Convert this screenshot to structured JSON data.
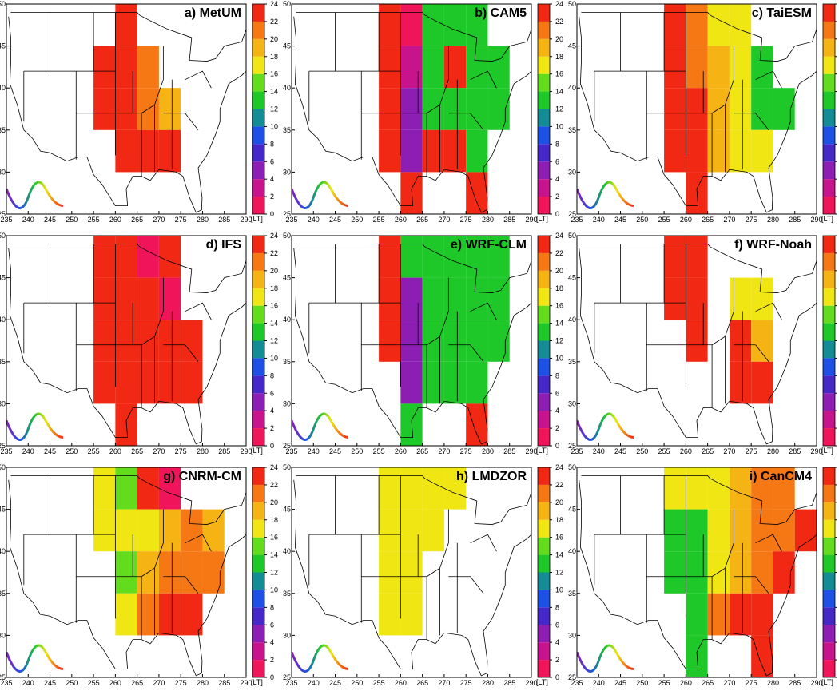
{
  "xlim": [
    235,
    290
  ],
  "ylim": [
    25,
    50
  ],
  "xticks": [
    235,
    240,
    245,
    250,
    255,
    260,
    265,
    270,
    275,
    280,
    285,
    290
  ],
  "yticks": [
    25,
    30,
    35,
    40,
    45,
    50
  ],
  "colorbar": {
    "unit": "[LT]",
    "ticks": [
      0,
      2,
      4,
      6,
      8,
      10,
      12,
      14,
      16,
      18,
      20,
      22,
      24
    ],
    "colors": [
      "#f0145a",
      "#c8148c",
      "#8c1eb4",
      "#4628c8",
      "#1e50e6",
      "#148c96",
      "#1ec828",
      "#64dc1e",
      "#f0e614",
      "#f5b414",
      "#f57814",
      "#f02814"
    ]
  },
  "lon_edges": [
    250,
    255,
    260,
    265,
    270,
    275,
    280,
    285,
    290
  ],
  "lat_edges": [
    50,
    45,
    40,
    35,
    30,
    25
  ],
  "panels": [
    {
      "title": "a) MetUM",
      "values": [
        [
          null,
          null,
          22,
          null,
          null,
          null,
          null,
          null
        ],
        [
          null,
          22,
          22,
          20,
          null,
          null,
          null,
          null
        ],
        [
          null,
          22,
          22,
          20,
          18,
          null,
          null,
          null
        ],
        [
          null,
          null,
          22,
          22,
          22,
          null,
          null,
          null
        ],
        [
          null,
          null,
          null,
          null,
          null,
          null,
          null,
          null
        ]
      ]
    },
    {
      "title": "b) CAM5",
      "values": [
        [
          null,
          23,
          1,
          12,
          12,
          12,
          null,
          null
        ],
        [
          null,
          23,
          2,
          12,
          22,
          12,
          12,
          null
        ],
        [
          null,
          23,
          5,
          12,
          12,
          12,
          12,
          null
        ],
        [
          null,
          23,
          5,
          22,
          22,
          12,
          null,
          null
        ],
        [
          null,
          null,
          23,
          null,
          null,
          22,
          null,
          null
        ]
      ]
    },
    {
      "title": "c) TaiESM",
      "values": [
        [
          null,
          22,
          20,
          16,
          16,
          null,
          null,
          null
        ],
        [
          null,
          22,
          21,
          18,
          16,
          12,
          null,
          null
        ],
        [
          null,
          22,
          22,
          18,
          16,
          12,
          12,
          null
        ],
        [
          null,
          22,
          22,
          18,
          16,
          16,
          null,
          null
        ],
        [
          null,
          null,
          22,
          null,
          null,
          null,
          null,
          null
        ]
      ]
    },
    {
      "title": "d) IFS",
      "values": [
        [
          null,
          23,
          23,
          1,
          23,
          null,
          null,
          null
        ],
        [
          null,
          23,
          23,
          23,
          1,
          null,
          null,
          null
        ],
        [
          null,
          23,
          23,
          22,
          23,
          23,
          null,
          null
        ],
        [
          null,
          22,
          22,
          23,
          23,
          23,
          null,
          null
        ],
        [
          null,
          null,
          22,
          null,
          null,
          null,
          null,
          null
        ]
      ]
    },
    {
      "title": "e) WRF-CLM",
      "values": [
        [
          null,
          23,
          12,
          12,
          12,
          12,
          12,
          null
        ],
        [
          null,
          23,
          4,
          12,
          12,
          12,
          12,
          null
        ],
        [
          null,
          22,
          4,
          12,
          12,
          12,
          12,
          null
        ],
        [
          null,
          null,
          4,
          12,
          12,
          12,
          null,
          null
        ],
        [
          null,
          null,
          12,
          null,
          null,
          23,
          null,
          null
        ]
      ]
    },
    {
      "title": "f) WRF-Noah",
      "values": [
        [
          null,
          22,
          22,
          null,
          null,
          null,
          null,
          null
        ],
        [
          null,
          22,
          22,
          null,
          17,
          16,
          null,
          null
        ],
        [
          null,
          null,
          22,
          null,
          22,
          18,
          null,
          null
        ],
        [
          null,
          null,
          null,
          null,
          22,
          22,
          null,
          null
        ],
        [
          null,
          null,
          null,
          null,
          null,
          null,
          null,
          null
        ]
      ]
    },
    {
      "title": "g) CNRM-CM",
      "values": [
        [
          null,
          16,
          14,
          22,
          1,
          null,
          null,
          null
        ],
        [
          null,
          16,
          16,
          16,
          18,
          20,
          18,
          null
        ],
        [
          null,
          null,
          14,
          18,
          20,
          20,
          20,
          null
        ],
        [
          null,
          null,
          16,
          20,
          22,
          22,
          null,
          null
        ],
        [
          null,
          null,
          null,
          null,
          null,
          null,
          null,
          null
        ]
      ]
    },
    {
      "title": "h) LMDZOR",
      "values": [
        [
          null,
          17,
          16,
          16,
          16,
          null,
          null,
          null
        ],
        [
          null,
          17,
          16,
          16,
          null,
          null,
          null,
          null
        ],
        [
          null,
          16,
          16,
          null,
          null,
          null,
          null,
          null
        ],
        [
          null,
          16,
          16,
          null,
          null,
          null,
          null,
          null
        ],
        [
          null,
          null,
          null,
          null,
          null,
          null,
          null,
          null
        ]
      ]
    },
    {
      "title": "i) CanCM4",
      "values": [
        [
          null,
          16,
          16,
          16,
          18,
          21,
          20,
          null
        ],
        [
          null,
          13,
          12,
          16,
          18,
          20,
          20,
          22
        ],
        [
          null,
          13,
          12,
          16,
          18,
          20,
          22,
          null
        ],
        [
          null,
          null,
          12,
          21,
          22,
          22,
          null,
          null
        ],
        [
          null,
          null,
          12,
          null,
          null,
          22,
          null,
          null
        ]
      ]
    }
  ]
}
